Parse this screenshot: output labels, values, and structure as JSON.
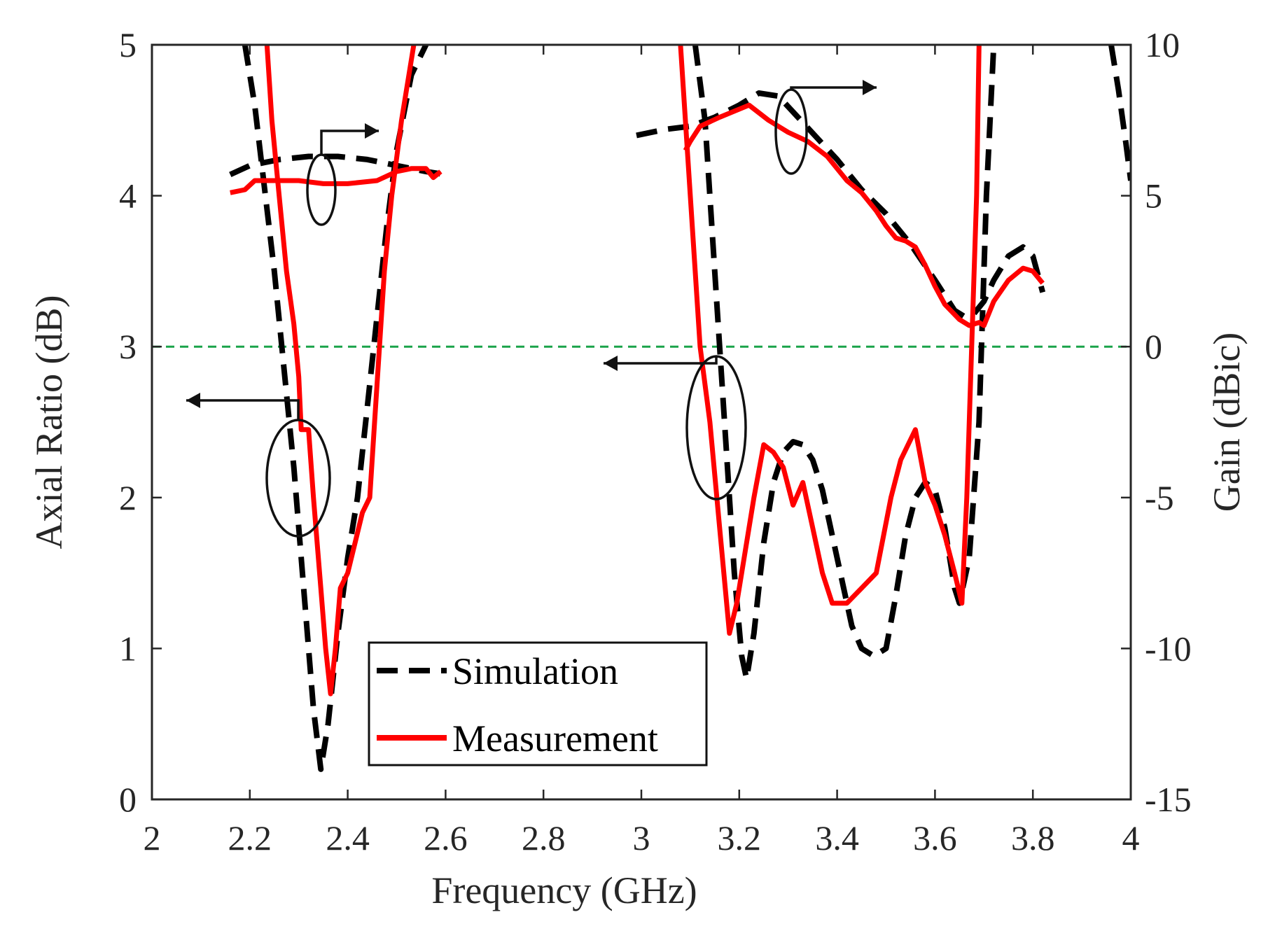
{
  "chart_data": {
    "type": "line",
    "xlabel": "Frequency (GHz)",
    "ylabel_left": "Axial Ratio (dB)",
    "ylabel_right": "Gain (dBic)",
    "xlim": [
      2,
      4
    ],
    "ylim_left": [
      0,
      5
    ],
    "ylim_right": [
      -15,
      10
    ],
    "x_ticks": [
      2,
      2.2,
      2.4,
      2.6,
      2.8,
      3,
      3.2,
      3.4,
      3.6,
      3.8,
      4
    ],
    "x_tick_labels": [
      "2",
      "2.2",
      "2.4",
      "2.6",
      "2.8",
      "3",
      "3.2",
      "3.4",
      "3.6",
      "3.8",
      "4"
    ],
    "y_left_ticks": [
      0,
      1,
      2,
      3,
      4,
      5
    ],
    "y_left_tick_labels": [
      "0",
      "1",
      "2",
      "3",
      "4",
      "5"
    ],
    "y_right_ticks": [
      -15,
      -10,
      -5,
      0,
      5,
      10
    ],
    "y_right_tick_labels": [
      "-15",
      "-10",
      "-5",
      "0",
      "5",
      "10"
    ],
    "reference_line": {
      "axis": "left",
      "y": 3,
      "color": "#1aa34a"
    },
    "colors": {
      "simulation": "#000000",
      "measurement": "#ff0000"
    },
    "legend": {
      "position": "bottom-center",
      "entries": [
        "Simulation",
        "Measurement"
      ]
    },
    "series": [
      {
        "name": "Simulation",
        "quantity": "Axial Ratio",
        "axis": "left",
        "style": "dashed",
        "segments": [
          [
            [
              2.19,
              5.0
            ],
            [
              2.21,
              4.6
            ],
            [
              2.23,
              4.05
            ],
            [
              2.25,
              3.5
            ],
            [
              2.27,
              2.85
            ],
            [
              2.29,
              2.2
            ],
            [
              2.31,
              1.4
            ],
            [
              2.33,
              0.6
            ],
            [
              2.345,
              0.2
            ],
            [
              2.36,
              0.5
            ],
            [
              2.38,
              1.1
            ],
            [
              2.4,
              1.6
            ],
            [
              2.42,
              2.0
            ],
            [
              2.44,
              2.6
            ],
            [
              2.46,
              3.2
            ],
            [
              2.48,
              3.8
            ],
            [
              2.5,
              4.3
            ],
            [
              2.53,
              4.8
            ],
            [
              2.56,
              5.0
            ]
          ],
          [
            [
              3.11,
              5.0
            ],
            [
              3.13,
              4.5
            ],
            [
              3.15,
              3.5
            ],
            [
              3.17,
              2.5
            ],
            [
              3.19,
              1.5
            ],
            [
              3.205,
              0.95
            ],
            [
              3.215,
              0.8
            ],
            [
              3.23,
              1.1
            ],
            [
              3.25,
              1.7
            ],
            [
              3.27,
              2.1
            ],
            [
              3.29,
              2.3
            ],
            [
              3.31,
              2.37
            ],
            [
              3.33,
              2.35
            ],
            [
              3.35,
              2.25
            ],
            [
              3.37,
              2.05
            ],
            [
              3.39,
              1.75
            ],
            [
              3.41,
              1.45
            ],
            [
              3.43,
              1.15
            ],
            [
              3.45,
              1.0
            ],
            [
              3.475,
              0.95
            ],
            [
              3.5,
              1.0
            ],
            [
              3.52,
              1.35
            ],
            [
              3.54,
              1.75
            ],
            [
              3.56,
              2.0
            ],
            [
              3.58,
              2.1
            ],
            [
              3.6,
              2.05
            ],
            [
              3.62,
              1.8
            ],
            [
              3.64,
              1.4
            ],
            [
              3.65,
              1.3
            ],
            [
              3.67,
              1.6
            ],
            [
              3.69,
              2.5
            ],
            [
              3.705,
              4.0
            ],
            [
              3.72,
              5.0
            ]
          ],
          [
            [
              3.96,
              5.0
            ],
            [
              3.975,
              4.7
            ],
            [
              3.99,
              4.35
            ],
            [
              4.0,
              4.1
            ]
          ]
        ]
      },
      {
        "name": "Measurement",
        "quantity": "Axial Ratio",
        "axis": "left",
        "style": "solid",
        "segments": [
          [
            [
              2.235,
              5.0
            ],
            [
              2.245,
              4.5
            ],
            [
              2.26,
              4.0
            ],
            [
              2.275,
              3.5
            ],
            [
              2.29,
              3.15
            ],
            [
              2.3,
              2.8
            ],
            [
              2.305,
              2.45
            ],
            [
              2.32,
              2.45
            ],
            [
              2.33,
              2.0
            ],
            [
              2.345,
              1.4
            ],
            [
              2.355,
              1.0
            ],
            [
              2.365,
              0.7
            ],
            [
              2.375,
              1.0
            ],
            [
              2.385,
              1.4
            ],
            [
              2.4,
              1.5
            ],
            [
              2.415,
              1.7
            ],
            [
              2.43,
              1.9
            ],
            [
              2.445,
              2.0
            ],
            [
              2.455,
              2.5
            ],
            [
              2.465,
              3.0
            ],
            [
              2.475,
              3.5
            ],
            [
              2.49,
              4.0
            ],
            [
              2.51,
              4.5
            ],
            [
              2.53,
              4.9
            ],
            [
              2.535,
              5.0
            ]
          ],
          [
            [
              3.08,
              5.0
            ],
            [
              3.1,
              4.0
            ],
            [
              3.12,
              3.0
            ],
            [
              3.14,
              2.5
            ],
            [
              3.16,
              1.8
            ],
            [
              3.18,
              1.1
            ],
            [
              3.195,
              1.3
            ],
            [
              3.21,
              1.6
            ],
            [
              3.23,
              2.0
            ],
            [
              3.25,
              2.35
            ],
            [
              3.27,
              2.3
            ],
            [
              3.29,
              2.2
            ],
            [
              3.31,
              1.95
            ],
            [
              3.33,
              2.1
            ],
            [
              3.35,
              1.8
            ],
            [
              3.37,
              1.5
            ],
            [
              3.39,
              1.3
            ],
            [
              3.42,
              1.3
            ],
            [
              3.45,
              1.4
            ],
            [
              3.48,
              1.5
            ],
            [
              3.51,
              2.0
            ],
            [
              3.53,
              2.25
            ],
            [
              3.56,
              2.45
            ],
            [
              3.58,
              2.1
            ],
            [
              3.6,
              1.95
            ],
            [
              3.62,
              1.75
            ],
            [
              3.64,
              1.5
            ],
            [
              3.655,
              1.3
            ],
            [
              3.665,
              2.0
            ],
            [
              3.675,
              3.0
            ],
            [
              3.685,
              4.0
            ],
            [
              3.69,
              5.0
            ]
          ]
        ]
      },
      {
        "name": "Simulation",
        "quantity": "Gain",
        "axis": "right",
        "style": "dashed",
        "segments": [
          [
            [
              2.16,
              5.7
            ],
            [
              2.2,
              6.0
            ],
            [
              2.26,
              6.2
            ],
            [
              2.32,
              6.3
            ],
            [
              2.38,
              6.3
            ],
            [
              2.44,
              6.2
            ],
            [
              2.5,
              6.0
            ],
            [
              2.56,
              5.8
            ],
            [
              2.6,
              5.7
            ]
          ],
          [
            [
              2.99,
              7.0
            ],
            [
              3.05,
              7.2
            ],
            [
              3.1,
              7.3
            ],
            [
              3.15,
              7.6
            ],
            [
              3.2,
              8.0
            ],
            [
              3.24,
              8.4
            ],
            [
              3.28,
              8.3
            ],
            [
              3.32,
              7.6
            ],
            [
              3.36,
              6.9
            ],
            [
              3.4,
              6.2
            ],
            [
              3.45,
              5.2
            ],
            [
              3.5,
              4.4
            ],
            [
              3.55,
              3.4
            ],
            [
              3.6,
              2.2
            ],
            [
              3.64,
              1.2
            ],
            [
              3.66,
              1.0
            ],
            [
              3.68,
              1.1
            ],
            [
              3.7,
              1.5
            ],
            [
              3.72,
              2.2
            ],
            [
              3.75,
              3.0
            ],
            [
              3.78,
              3.3
            ],
            [
              3.8,
              3.0
            ],
            [
              3.82,
              1.8
            ]
          ]
        ]
      },
      {
        "name": "Measurement",
        "quantity": "Gain",
        "axis": "right",
        "style": "solid",
        "segments": [
          [
            [
              2.16,
              5.1
            ],
            [
              2.19,
              5.2
            ],
            [
              2.21,
              5.5
            ],
            [
              2.25,
              5.5
            ],
            [
              2.3,
              5.5
            ],
            [
              2.35,
              5.4
            ],
            [
              2.4,
              5.4
            ],
            [
              2.46,
              5.5
            ],
            [
              2.5,
              5.8
            ],
            [
              2.53,
              5.9
            ],
            [
              2.56,
              5.9
            ],
            [
              2.575,
              5.6
            ],
            [
              2.59,
              5.8
            ]
          ],
          [
            [
              3.09,
              6.5
            ],
            [
              3.1,
              6.8
            ],
            [
              3.12,
              7.3
            ],
            [
              3.16,
              7.6
            ],
            [
              3.22,
              8.0
            ],
            [
              3.26,
              7.5
            ],
            [
              3.3,
              7.1
            ],
            [
              3.34,
              6.8
            ],
            [
              3.38,
              6.3
            ],
            [
              3.42,
              5.5
            ],
            [
              3.45,
              5.1
            ],
            [
              3.48,
              4.5
            ],
            [
              3.5,
              4.0
            ],
            [
              3.52,
              3.6
            ],
            [
              3.54,
              3.5
            ],
            [
              3.56,
              3.3
            ],
            [
              3.58,
              2.7
            ],
            [
              3.6,
              2.0
            ],
            [
              3.62,
              1.4
            ],
            [
              3.65,
              0.9
            ],
            [
              3.67,
              0.7
            ],
            [
              3.69,
              0.8
            ],
            [
              3.7,
              0.7
            ],
            [
              3.72,
              1.5
            ],
            [
              3.75,
              2.2
            ],
            [
              3.78,
              2.6
            ],
            [
              3.8,
              2.5
            ],
            [
              3.82,
              2.1
            ]
          ]
        ]
      }
    ],
    "annotations": [
      {
        "type": "ellipse-arrow",
        "target_axis": "right",
        "direction": "right"
      },
      {
        "type": "ellipse-arrow",
        "target_axis": "left",
        "direction": "left"
      },
      {
        "type": "ellipse-arrow",
        "target_axis": "right",
        "direction": "right"
      },
      {
        "type": "ellipse-arrow",
        "target_axis": "left",
        "direction": "left"
      }
    ]
  }
}
